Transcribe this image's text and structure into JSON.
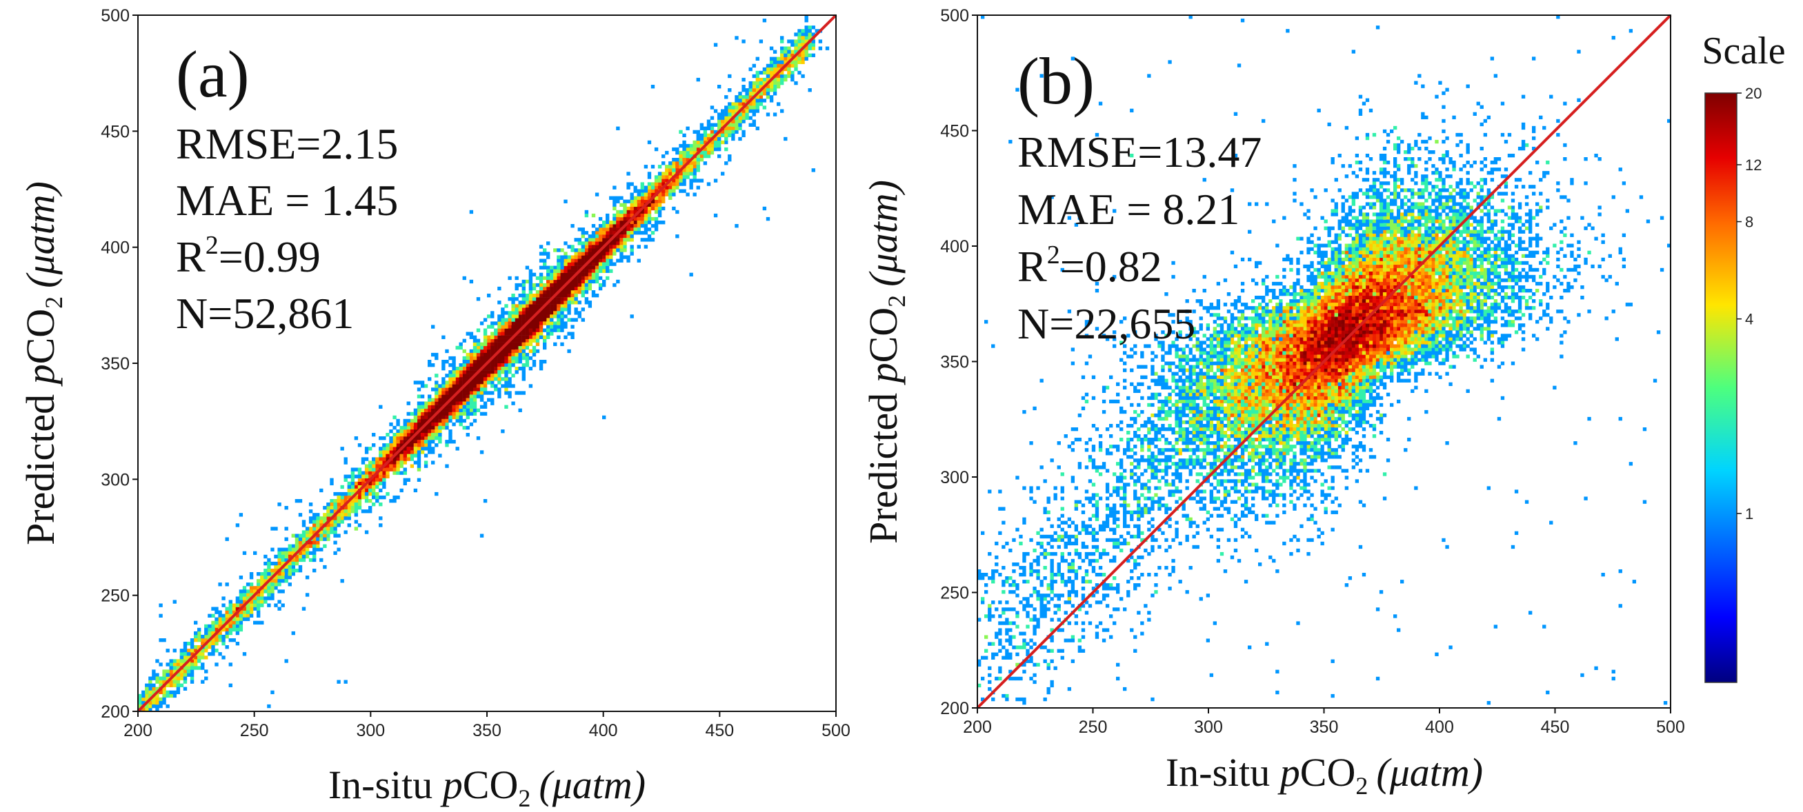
{
  "chart_data": [
    {
      "type": "heatmap",
      "panel_label": "(a)",
      "xlabel": {
        "prefix": "In-situ ",
        "var_p": "p",
        "var_co": "CO",
        "sub": "2",
        "unit": "(μatm)"
      },
      "ylabel": {
        "prefix": "Predicted ",
        "var_p": "p",
        "var_co": "CO",
        "sub": "2",
        "unit": "(μatm)"
      },
      "xlim": [
        200,
        500
      ],
      "ylim": [
        200,
        500
      ],
      "xticks": [
        "200",
        "250",
        "300",
        "350",
        "400",
        "450",
        "500"
      ],
      "yticks": [
        "200",
        "250",
        "300",
        "350",
        "400",
        "450",
        "500"
      ],
      "stats": {
        "rmse": "RMSE=2.15",
        "mae": "MAE = 1.45",
        "r2_prefix": "R",
        "r2_sup": "2",
        "r2_value": "=0.99",
        "n": "N=52,861"
      },
      "one_to_one_line": {
        "from": [
          200,
          200
        ],
        "to": [
          500,
          500
        ],
        "color": "#d62020"
      },
      "density_model": {
        "center_start": 200,
        "center_end": 490,
        "peak_center": 362,
        "spread_sd": 3.2,
        "outlier_sd": 9
      }
    },
    {
      "type": "heatmap",
      "panel_label": "(b)",
      "xlabel": {
        "prefix": "In-situ ",
        "var_p": "p",
        "var_co": "CO",
        "sub": "2",
        "unit": "(μatm)"
      },
      "ylabel": {
        "prefix": "Predicted ",
        "var_p": "p",
        "var_co": "CO",
        "sub": "2",
        "unit": "(μatm)"
      },
      "xlim": [
        200,
        500
      ],
      "ylim": [
        200,
        500
      ],
      "xticks": [
        "200",
        "250",
        "300",
        "350",
        "400",
        "450",
        "500"
      ],
      "yticks": [
        "200",
        "250",
        "300",
        "350",
        "400",
        "450",
        "500"
      ],
      "stats": {
        "rmse": "RMSE=13.47",
        "mae": "MAE = 8.21",
        "r2_prefix": "R",
        "r2_sup": "2",
        "r2_value": "=0.82",
        "n": "N=22,655"
      },
      "one_to_one_line": {
        "from": [
          200,
          200
        ],
        "to": [
          500,
          500
        ],
        "color": "#d62020"
      },
      "density_model": {
        "center_x": 360,
        "center_y": 362,
        "sd_along": 30,
        "sd_across": 10,
        "offset_low_x": 14
      }
    }
  ],
  "colorbar": {
    "title": "Scale",
    "ticks": [
      {
        "value": 20,
        "label": "20"
      },
      {
        "value": 12,
        "label": "12"
      },
      {
        "value": 8,
        "label": "8"
      },
      {
        "value": 4,
        "label": "4"
      },
      {
        "value": 1,
        "label": "1"
      }
    ],
    "scale": "log",
    "range": [
      0.3,
      20
    ],
    "colormap": "jet"
  }
}
